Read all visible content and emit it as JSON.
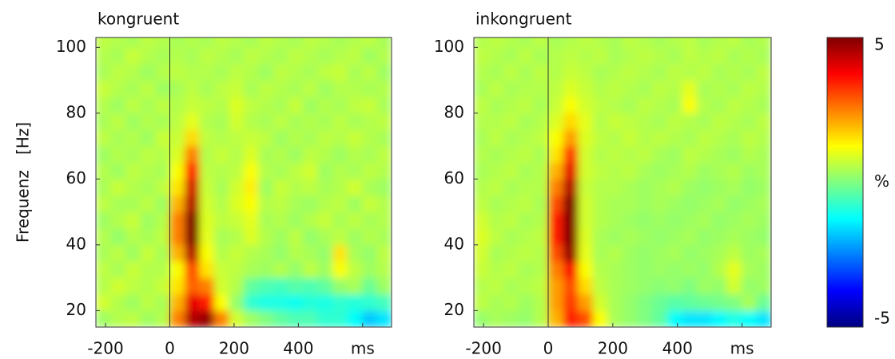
{
  "chart_data": [
    {
      "type": "heatmap",
      "title": "kongruent",
      "ylabel": "Frequenz   [Hz]",
      "xlim": [
        -230,
        690
      ],
      "ylim": [
        15,
        103
      ],
      "xticks": [
        -200,
        0,
        200,
        400,
        {
          "value": 600,
          "label": "ms"
        }
      ],
      "yticks": [
        20,
        40,
        60,
        80,
        100
      ],
      "vline": 0,
      "colormap": "jet",
      "clim": [
        -5,
        5
      ],
      "x": [
        -207,
        -161,
        -115,
        -69,
        -23,
        23,
        69,
        115,
        161,
        207,
        253,
        299,
        345,
        391,
        437,
        483,
        529,
        575,
        621,
        667
      ],
      "y": [
        17.5,
        22.5,
        27.5,
        32.5,
        37.5,
        42.5,
        47.5,
        52.5,
        57.5,
        62.5,
        67.5,
        72.5,
        77.5,
        82.5,
        87.5,
        92.5,
        97.5,
        102.5
      ],
      "z": [
        [
          0.3,
          0.5,
          0.6,
          0.3,
          0.5,
          2.5,
          4.5,
          4.8,
          2.5,
          0.8,
          0.3,
          0,
          -0.3,
          -0.5,
          -0.5,
          -0.8,
          -0.8,
          -1.2,
          -1.8,
          -1.5
        ],
        [
          0.8,
          0.5,
          0.3,
          0.6,
          0.4,
          2,
          4,
          3.5,
          1.2,
          0.2,
          -0.8,
          -1,
          -1,
          -1.1,
          -0.9,
          -1,
          -0.8,
          -0.9,
          -0.8,
          -0.6
        ],
        [
          0.5,
          0.8,
          0.6,
          0.5,
          0.7,
          1.5,
          2.8,
          2.5,
          0.8,
          0.5,
          -0.3,
          -0.5,
          -0.6,
          -0.4,
          -0.5,
          -0.3,
          0.2,
          0.4,
          -0.2,
          0.3
        ],
        [
          0.6,
          0.4,
          0.7,
          0.5,
          0.5,
          1.2,
          3,
          1.5,
          0.7,
          0.6,
          0.4,
          0.3,
          0.5,
          0.2,
          0.6,
          0.3,
          1.2,
          0.6,
          0.3,
          0.5
        ],
        [
          0.4,
          0.6,
          0.3,
          0.7,
          0.4,
          2,
          4.5,
          1.2,
          0.5,
          0.7,
          0.5,
          0.4,
          0.2,
          0.5,
          0.4,
          0.2,
          1.5,
          0.4,
          0.2,
          0.6
        ],
        [
          0.5,
          0.2,
          0.5,
          0.4,
          0.6,
          2.5,
          5,
          1,
          0.4,
          0.5,
          0.9,
          0.5,
          0.3,
          0.6,
          0.2,
          0.4,
          0.6,
          0.3,
          0.5,
          0.4
        ],
        [
          0.3,
          0.5,
          0.7,
          0.3,
          0.5,
          2.5,
          5,
          0.9,
          0.6,
          0.7,
          1,
          0.4,
          0.5,
          0.3,
          0.5,
          0.7,
          0.4,
          0.6,
          0.4,
          0.5
        ],
        [
          0.6,
          0.4,
          0.4,
          0.6,
          0.3,
          2,
          4.5,
          0.8,
          0.5,
          0.9,
          1.2,
          0.5,
          0.6,
          0.4,
          0.3,
          0.5,
          0.6,
          0.3,
          0.7,
          0.5
        ],
        [
          0.4,
          0.7,
          0.5,
          0.4,
          0.6,
          1.5,
          4.2,
          0.7,
          0.4,
          0.8,
          1.4,
          0.3,
          0.7,
          0.5,
          0.6,
          0.4,
          0.5,
          0.8,
          0.4,
          0.3
        ],
        [
          0.5,
          0.3,
          0.6,
          0.5,
          0.4,
          1.2,
          3.5,
          0.6,
          0.5,
          0.6,
          1.2,
          0.5,
          0.4,
          0.6,
          0.8,
          0.3,
          0.5,
          0.4,
          0.6,
          0.5
        ],
        [
          0.3,
          0.5,
          0.4,
          0.6,
          0.5,
          0.9,
          2.5,
          0.5,
          0.7,
          0.5,
          0.9,
          0.4,
          0.5,
          0.3,
          0.6,
          0.5,
          0.3,
          0.5,
          0.4,
          0.6
        ],
        [
          0.6,
          0.4,
          0.5,
          0.3,
          0.7,
          0.7,
          1.6,
          0.6,
          0.5,
          0.6,
          0.7,
          0.6,
          0.3,
          0.5,
          0.4,
          0.6,
          0.5,
          0.7,
          0.5,
          0.4
        ],
        [
          0.4,
          0.6,
          0.3,
          0.5,
          0.4,
          0.6,
          1,
          0.5,
          0.4,
          0.8,
          0.5,
          0.4,
          0.6,
          0.4,
          0.5,
          0.4,
          0.6,
          0.4,
          0.5,
          0.6
        ],
        [
          0.5,
          0.3,
          0.6,
          0.4,
          0.6,
          0.5,
          0.7,
          0.6,
          0.5,
          0.9,
          0.6,
          0.5,
          0.4,
          0.7,
          0.3,
          0.5,
          0.4,
          0.6,
          0.7,
          0.4
        ],
        [
          0.7,
          0.5,
          0.4,
          0.6,
          0.3,
          0.4,
          0.6,
          0.4,
          0.6,
          0.7,
          0.4,
          0.6,
          0.5,
          0.4,
          0.6,
          0.3,
          0.5,
          0.5,
          0.4,
          0.5
        ],
        [
          0.4,
          0.6,
          0.5,
          0.3,
          0.5,
          0.6,
          0.5,
          0.5,
          0.4,
          0.6,
          0.5,
          0.3,
          0.6,
          0.5,
          0.4,
          0.6,
          0.7,
          0.4,
          0.6,
          0.3
        ],
        [
          0.5,
          0.4,
          0.7,
          0.5,
          0.4,
          0.5,
          0.4,
          0.6,
          0.5,
          0.4,
          0.6,
          0.5,
          0.4,
          0.6,
          0.5,
          0.4,
          0.5,
          0.6,
          0.3,
          0.5
        ],
        [
          0.6,
          0.5,
          0.4,
          0.6,
          0.5,
          0.4,
          0.5,
          0.4,
          0.6,
          0.5,
          0.4,
          0.6,
          0.5,
          0.4,
          0.6,
          0.5,
          0.4,
          0.5,
          0.6,
          0.4
        ]
      ]
    },
    {
      "type": "heatmap",
      "title": "inkongruent",
      "xlim": [
        -230,
        690
      ],
      "ylim": [
        15,
        103
      ],
      "xticks": [
        -200,
        0,
        200,
        400,
        {
          "value": 600,
          "label": "ms"
        }
      ],
      "yticks": [
        20,
        40,
        60,
        80,
        100
      ],
      "vline": 0,
      "colormap": "jet",
      "clim": [
        -5,
        5
      ],
      "colorbar": {
        "ticks": [
          5,
          {
            "value": 0,
            "label": "%"
          },
          -5
        ]
      },
      "x": [
        -207,
        -161,
        -115,
        -69,
        -23,
        23,
        69,
        115,
        161,
        207,
        253,
        299,
        345,
        391,
        437,
        483,
        529,
        575,
        621,
        667
      ],
      "y": [
        17.5,
        22.5,
        27.5,
        32.5,
        37.5,
        42.5,
        47.5,
        52.5,
        57.5,
        62.5,
        67.5,
        72.5,
        77.5,
        82.5,
        87.5,
        92.5,
        97.5,
        102.5
      ],
      "z": [
        [
          0.2,
          0.4,
          0.3,
          0.2,
          0.5,
          2,
          3.5,
          3,
          1.2,
          0.4,
          0.2,
          0,
          -0.3,
          -1.2,
          -1.5,
          -1.5,
          -1.3,
          -1,
          -1.2,
          -1.5
        ],
        [
          0.6,
          0.4,
          0.5,
          0.3,
          0.5,
          2.2,
          3.2,
          2.2,
          0.8,
          0.4,
          0.2,
          0,
          -0.2,
          -0.4,
          -0.3,
          -0.2,
          -0.1,
          0,
          0.4,
          -0.2
        ],
        [
          0.5,
          0.6,
          0.4,
          0.5,
          0.6,
          2.2,
          3,
          1.6,
          0.6,
          0.4,
          0.3,
          0.2,
          0.1,
          0.2,
          0,
          0.3,
          0.2,
          0.8,
          0.2,
          0.3
        ],
        [
          0.7,
          0.5,
          0.6,
          0.4,
          0.5,
          2.5,
          3.8,
          1.2,
          0.5,
          0.4,
          0.3,
          0.2,
          0.3,
          0.2,
          0.3,
          0.2,
          0.5,
          1,
          0.4,
          0.3
        ],
        [
          0.8,
          0.4,
          0.5,
          0.6,
          0.5,
          3,
          4.8,
          1,
          0.4,
          0.5,
          0.3,
          0.2,
          0.3,
          0.4,
          0.2,
          0.3,
          0.4,
          0.6,
          0.3,
          0.4
        ],
        [
          0.9,
          0.6,
          0.4,
          0.5,
          0.6,
          3.5,
          5,
          0.9,
          0.4,
          0.3,
          0.4,
          0.3,
          0.2,
          0.3,
          0.4,
          0.2,
          0.3,
          0.4,
          0.3,
          0.2
        ],
        [
          0.8,
          0.5,
          0.6,
          0.4,
          0.5,
          3.5,
          5,
          0.8,
          0.5,
          0.4,
          0.3,
          0.2,
          0.3,
          0.2,
          0.3,
          0.4,
          0.2,
          0.3,
          0.4,
          0.3
        ],
        [
          0.6,
          0.4,
          0.5,
          0.6,
          0.4,
          3,
          5,
          0.8,
          0.5,
          0.4,
          0.4,
          0.3,
          0.4,
          0.3,
          0.2,
          0.3,
          0.4,
          0.2,
          0.3,
          0.4
        ],
        [
          0.5,
          0.6,
          0.4,
          0.5,
          0.5,
          2.5,
          4.5,
          0.7,
          0.5,
          0.5,
          0.4,
          0.3,
          0.4,
          0.5,
          0.3,
          0.2,
          0.3,
          0.4,
          0.2,
          0.3
        ],
        [
          0.4,
          0.5,
          0.6,
          0.4,
          0.5,
          2,
          4,
          0.8,
          0.6,
          0.5,
          0.6,
          0.4,
          0.3,
          0.4,
          0.5,
          0.3,
          0.4,
          0.5,
          0.3,
          0.4
        ],
        [
          0.5,
          0.4,
          0.5,
          0.6,
          0.4,
          1.5,
          3.2,
          0.8,
          0.5,
          0.6,
          0.5,
          0.6,
          0.4,
          0.3,
          0.6,
          0.5,
          0.4,
          0.3,
          0.5,
          0.4
        ],
        [
          0.4,
          0.6,
          0.4,
          0.5,
          0.6,
          1.2,
          2.2,
          0.9,
          0.6,
          0.5,
          0.7,
          0.5,
          0.6,
          0.5,
          0.4,
          0.6,
          0.5,
          0.4,
          0.6,
          0.5
        ],
        [
          0.5,
          0.5,
          0.6,
          0.4,
          0.5,
          0.9,
          1.6,
          1,
          0.5,
          0.7,
          0.6,
          0.5,
          0.4,
          0.6,
          0.5,
          0.4,
          0.6,
          0.5,
          0.4,
          0.6
        ],
        [
          0.6,
          0.4,
          0.5,
          0.6,
          0.4,
          0.7,
          1.2,
          0.8,
          0.6,
          0.5,
          0.4,
          0.6,
          0.5,
          0.4,
          1.2,
          0.5,
          0.4,
          0.6,
          0.5,
          0.4
        ],
        [
          0.4,
          0.6,
          0.4,
          0.5,
          0.5,
          0.6,
          0.9,
          0.7,
          0.5,
          0.6,
          0.5,
          0.4,
          0.6,
          0.5,
          1,
          0.4,
          0.5,
          0.4,
          0.6,
          0.5
        ],
        [
          0.5,
          0.4,
          0.6,
          0.4,
          0.6,
          0.5,
          0.7,
          0.6,
          0.4,
          0.5,
          0.6,
          0.5,
          0.4,
          0.6,
          0.5,
          0.6,
          0.4,
          0.5,
          0.4,
          0.6
        ],
        [
          0.6,
          0.5,
          0.4,
          0.6,
          0.4,
          0.5,
          0.6,
          0.5,
          0.6,
          0.4,
          0.5,
          0.6,
          0.5,
          0.4,
          0.6,
          0.5,
          0.6,
          0.4,
          0.5,
          0.4
        ],
        [
          0.5,
          0.6,
          0.5,
          0.4,
          0.6,
          0.4,
          0.5,
          0.6,
          0.5,
          0.4,
          0.6,
          0.5,
          0.4,
          0.5,
          0.6,
          0.4,
          0.5,
          0.6,
          0.4,
          0.5
        ]
      ]
    }
  ]
}
